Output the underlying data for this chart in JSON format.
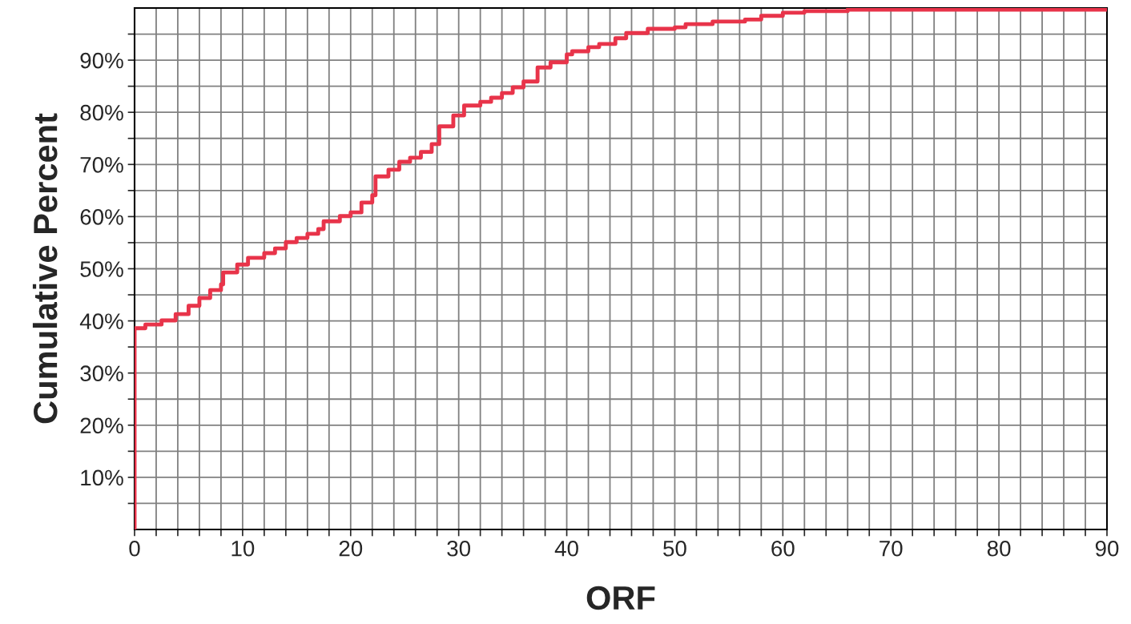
{
  "chart_data": {
    "type": "step",
    "xlabel": "ORF",
    "ylabel": "Cumulative Percent",
    "x": [
      0,
      0,
      1,
      2.5,
      3.8,
      5,
      6,
      7,
      8,
      8.2,
      9.5,
      10.5,
      12,
      13,
      14,
      15,
      16,
      17,
      17.5,
      19,
      20,
      21,
      22,
      22.3,
      23.5,
      24.5,
      25.5,
      26.5,
      27.5,
      28.2,
      29.5,
      30.5,
      32,
      33,
      34,
      35,
      36,
      37.3,
      38.5,
      40,
      40.5,
      42,
      43,
      44.5,
      45.5,
      47.5,
      50,
      51,
      53.5,
      56.5,
      58,
      60,
      62,
      66,
      90
    ],
    "series": [
      {
        "color": "#e8344a",
        "values": [
          0,
          38.6,
          39.3,
          40.1,
          41.3,
          42.9,
          44.4,
          45.9,
          47.0,
          49.3,
          50.8,
          52.1,
          53.0,
          53.9,
          55.1,
          55.9,
          56.7,
          57.6,
          59.1,
          60.1,
          60.8,
          62.7,
          64.1,
          67.7,
          69.0,
          70.5,
          71.3,
          72.4,
          73.9,
          77.3,
          79.4,
          81.3,
          82.0,
          82.8,
          83.7,
          84.8,
          85.9,
          88.6,
          89.6,
          91.1,
          91.7,
          92.5,
          93.1,
          94.2,
          95.2,
          96.0,
          96.3,
          96.9,
          97.4,
          97.8,
          98.5,
          99.1,
          99.4,
          99.7,
          99.7
        ]
      }
    ],
    "xlim": [
      0,
      90
    ],
    "ylim": [
      0,
      100
    ],
    "xticks": [
      0,
      {
        "value": 2,
        "label": null
      },
      {
        "value": 4,
        "label": null
      },
      {
        "value": 6,
        "label": null
      },
      {
        "value": 8,
        "label": null
      },
      10,
      {
        "value": 12,
        "label": null
      },
      {
        "value": 14,
        "label": null
      },
      {
        "value": 16,
        "label": null
      },
      {
        "value": 18,
        "label": null
      },
      20,
      {
        "value": 22,
        "label": null
      },
      {
        "value": 24,
        "label": null
      },
      {
        "value": 26,
        "label": null
      },
      {
        "value": 28,
        "label": null
      },
      30,
      {
        "value": 32,
        "label": null
      },
      {
        "value": 34,
        "label": null
      },
      {
        "value": 36,
        "label": null
      },
      {
        "value": 38,
        "label": null
      },
      40,
      {
        "value": 42,
        "label": null
      },
      {
        "value": 44,
        "label": null
      },
      {
        "value": 46,
        "label": null
      },
      {
        "value": 48,
        "label": null
      },
      50,
      {
        "value": 52,
        "label": null
      },
      {
        "value": 54,
        "label": null
      },
      {
        "value": 56,
        "label": null
      },
      {
        "value": 58,
        "label": null
      },
      60,
      {
        "value": 62,
        "label": null
      },
      {
        "value": 64,
        "label": null
      },
      {
        "value": 66,
        "label": null
      },
      {
        "value": 68,
        "label": null
      },
      70,
      {
        "value": 72,
        "label": null
      },
      {
        "value": 74,
        "label": null
      },
      {
        "value": 76,
        "label": null
      },
      {
        "value": 78,
        "label": null
      },
      80,
      {
        "value": 82,
        "label": null
      },
      {
        "value": 84,
        "label": null
      },
      {
        "value": 86,
        "label": null
      },
      {
        "value": 88,
        "label": null
      },
      90
    ],
    "yticks": [
      {
        "value": 5,
        "label": null
      },
      {
        "value": 10,
        "label": "10%"
      },
      {
        "value": 15,
        "label": null
      },
      {
        "value": 20,
        "label": "20%"
      },
      {
        "value": 25,
        "label": null
      },
      {
        "value": 30,
        "label": "30%"
      },
      {
        "value": 35,
        "label": null
      },
      {
        "value": 40,
        "label": "40%"
      },
      {
        "value": 45,
        "label": null
      },
      {
        "value": 50,
        "label": "50%"
      },
      {
        "value": 55,
        "label": null
      },
      {
        "value": 60,
        "label": "60%"
      },
      {
        "value": 65,
        "label": null
      },
      {
        "value": 70,
        "label": "70%"
      },
      {
        "value": 75,
        "label": null
      },
      {
        "value": 80,
        "label": "80%"
      },
      {
        "value": 85,
        "label": null
      },
      {
        "value": 90,
        "label": "90%"
      },
      {
        "value": 95,
        "label": null
      }
    ],
    "grid": true,
    "legend": false
  }
}
